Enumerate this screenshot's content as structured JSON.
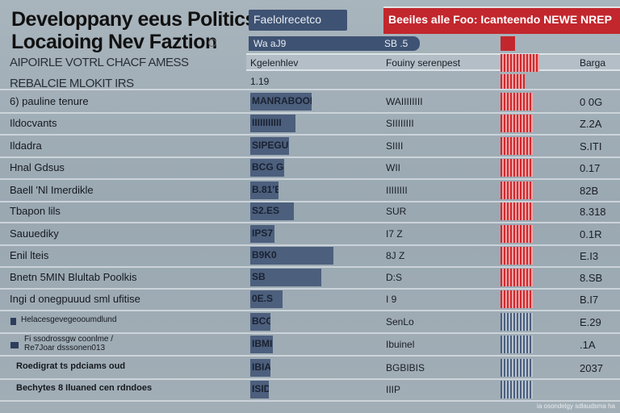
{
  "header": {
    "title_line1": "Developpany eeus Politics",
    "title_line2": "Locaioing Nev Faztion",
    "subtitle1": "AIPOIRLE VOTRL CHACF AMESS",
    "subtitle2": "REBALCIE MLOKIT IRS",
    "tab_label": "Faelolrecetco",
    "red_banner": "Beeiles alle Foo: Icanteendo NEWE NREP",
    "pill_left": "Wa aJ9",
    "pill_right": "SB .5"
  },
  "colors": {
    "navy": "#3e5273",
    "red": "#c2272d",
    "background": "#9aa8b2"
  },
  "column_headers": {
    "c1": "Kgelenhlev",
    "c2": "Fouiny serenpest",
    "c4": "Barga",
    "row_note": "1.19"
  },
  "rows": [
    {
      "label": "6) pauline tenure",
      "bar": "MANRABOOK",
      "bar_fill": 0.76,
      "c2": "WAIIIIIIII",
      "value": "0 0G",
      "red": true
    },
    {
      "label": "Ildocvants",
      "bar": "IIIIIIIIIII",
      "bar_fill": 0.56,
      "c2": "SIIIIIIII",
      "value": "Z.2A",
      "red": true
    },
    {
      "label": "Ildadra",
      "bar": "SIPEGU",
      "bar_fill": 0.48,
      "c2": "SIIII",
      "value": "S.ITI",
      "red": true
    },
    {
      "label": "Hnal Gdsus",
      "bar": "BCG GIH",
      "bar_fill": 0.42,
      "c2": "WII",
      "value": "0.17",
      "red": true
    },
    {
      "label": "Baell 'Nl Imerdikle",
      "bar": "B.81'B",
      "bar_fill": 0.35,
      "c2": "IIIIIIII",
      "value": "82B",
      "red": true
    },
    {
      "label": "Tbapon lils",
      "bar": "S2.ES",
      "bar_fill": 0.54,
      "c2": "SUR",
      "value": "8.318",
      "red": true
    },
    {
      "label": "Sauuediky",
      "bar": "IPS7",
      "bar_fill": 0.3,
      "c2": "I7 Z",
      "value": "0.1R",
      "red": true
    },
    {
      "label": "Enil lteis",
      "bar": "B9K0",
      "bar_fill": 1.03,
      "c2": "8J Z",
      "value": "E.I3",
      "red": true
    },
    {
      "label": "Bnetn 5MIN Blultab Poolkis",
      "bar": "SB",
      "bar_fill": 0.88,
      "c2": "D:S",
      "value": "8.SB",
      "red": true
    },
    {
      "label": "Ingi d onegpuuud sml ufitise",
      "bar": "0E.S",
      "bar_fill": 0.4,
      "c2": "I 9",
      "value": "B.I7",
      "red": true
    },
    {
      "label": "Helacesgevegeooumdlund",
      "bar": "BCG",
      "bar_fill": 0.25,
      "c2": "SenLo",
      "value": "E.29",
      "red": false
    },
    {
      "label": "Fi ssodrossgw coonlme / Re7Joar dsssonen013",
      "bar": "IBMI",
      "bar_fill": 0.28,
      "c2": "Ibuinel",
      "value": ".1A",
      "red": false
    },
    {
      "label": "Roedigrat ts pdciams oud",
      "bar": "IBIA",
      "bar_fill": 0.25,
      "c2": "BGBIBIS",
      "value": "2037",
      "red": false
    },
    {
      "label": "Bechytes 8 Iluaned cen rdndoes",
      "bar": "ISID",
      "bar_fill": 0.23,
      "c2": "IIIP",
      "value": "",
      "red": false
    }
  ],
  "footer": "ia osondelgy  sdlaudsma ha"
}
